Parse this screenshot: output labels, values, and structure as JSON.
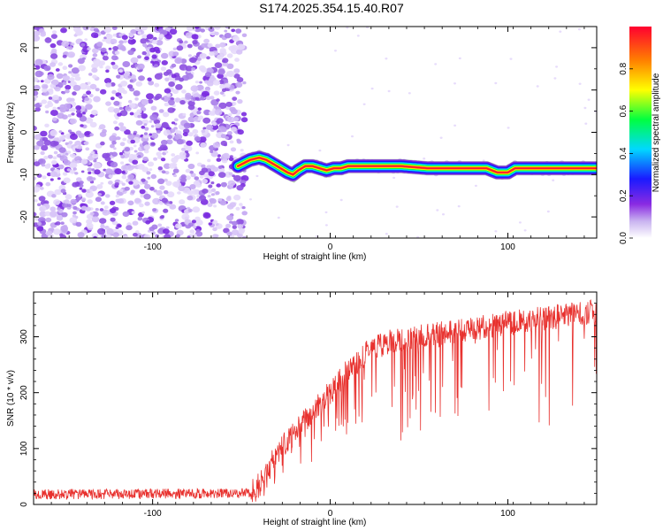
{
  "title": "S174.2025.354.15.40.R07",
  "chart_data": [
    {
      "type": "heatmap",
      "name": "spectrogram",
      "xlabel": "Height of straight line (km)",
      "ylabel": "Frequency (Hz)",
      "xlim": [
        -167,
        150
      ],
      "ylim": [
        -25,
        25
      ],
      "x_ticks": [
        -100,
        0,
        100
      ],
      "y_ticks": [
        -20,
        -10,
        0,
        10,
        20
      ],
      "colorbar": {
        "label": "Normalized spectral amplitude",
        "range": [
          0,
          1
        ],
        "ticks": [
          0.0,
          0.2,
          0.4,
          0.6,
          0.8
        ]
      },
      "noise_region_x": [
        -167,
        -52
      ],
      "ridge": {
        "x": [
          -52,
          -45,
          -40,
          -36,
          -32,
          -28,
          -24,
          -21,
          -18,
          -14,
          -10,
          -6,
          -2,
          2,
          6,
          10,
          20,
          40,
          55,
          70,
          88,
          94,
          100,
          104,
          110,
          130,
          150
        ],
        "freq": [
          -8,
          -6.5,
          -6,
          -6.5,
          -7.5,
          -8.5,
          -9.5,
          -10,
          -9,
          -8,
          -8,
          -8.5,
          -9,
          -8.5,
          -8.5,
          -8,
          -8,
          -8,
          -8.5,
          -8.5,
          -8.5,
          -9.5,
          -9.5,
          -8.5,
          -8.5,
          -8.5,
          -8.5
        ]
      }
    },
    {
      "type": "line",
      "name": "snr",
      "xlabel": "Height of straight line (km)",
      "ylabel": "SNR (10 * v/v)",
      "xlim": [
        -167,
        150
      ],
      "ylim": [
        0,
        380
      ],
      "x_ticks": [
        -100,
        0,
        100
      ],
      "y_ticks": [
        0,
        100,
        200,
        300
      ],
      "color": "#e8312e",
      "trend": {
        "x": [
          -167,
          -45,
          -40,
          -30,
          -20,
          -10,
          0,
          10,
          20,
          30,
          50,
          70,
          100,
          150
        ],
        "y": [
          18,
          20,
          35,
          90,
          130,
          165,
          200,
          240,
          270,
          290,
          300,
          310,
          325,
          345
        ]
      }
    }
  ]
}
